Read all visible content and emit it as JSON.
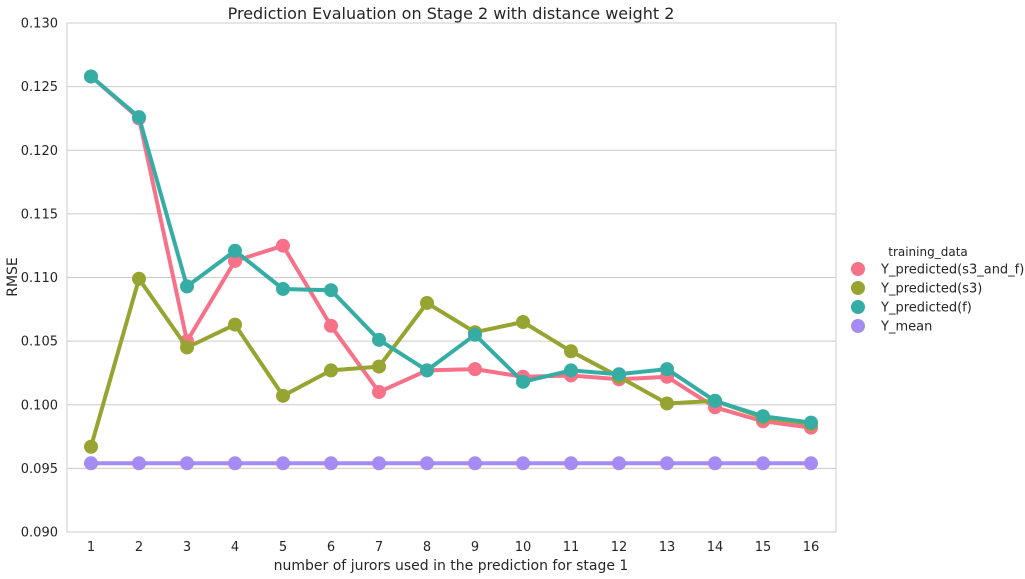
{
  "chart_data": {
    "type": "line",
    "title": "Prediction Evaluation on Stage 2 with distance weight 2",
    "xlabel": "number of jurors used in the prediction for stage 1",
    "ylabel": "RMSE",
    "categories": [
      1,
      2,
      3,
      4,
      5,
      6,
      7,
      8,
      9,
      10,
      11,
      12,
      13,
      14,
      15,
      16
    ],
    "ylim": [
      0.09,
      0.13
    ],
    "yticks": [
      "0.090",
      "0.095",
      "0.100",
      "0.105",
      "0.110",
      "0.115",
      "0.120",
      "0.125",
      "0.130"
    ],
    "grid": "horizontal",
    "legend": {
      "title": "training_data",
      "placement": "right"
    },
    "series": [
      {
        "name": "Y_predicted(s3_and_f)",
        "color": "#f77189",
        "values": [
          0.1258,
          0.1225,
          0.105,
          0.1113,
          0.1125,
          0.1062,
          0.101,
          0.1027,
          0.1028,
          0.1022,
          0.1023,
          0.102,
          0.1022,
          0.0998,
          0.0987,
          0.0982
        ]
      },
      {
        "name": "Y_predicted(s3)",
        "color": "#97a431",
        "values": [
          0.0967,
          0.1099,
          0.1045,
          0.1063,
          0.1007,
          0.1027,
          0.103,
          0.108,
          0.1057,
          0.1065,
          0.1042,
          0.1022,
          0.1001,
          0.1003,
          0.099,
          0.0985
        ]
      },
      {
        "name": "Y_predicted(f)",
        "color": "#36ada4",
        "values": [
          0.1258,
          0.1226,
          0.1093,
          0.1121,
          0.1091,
          0.109,
          0.1051,
          0.1027,
          0.1055,
          0.1018,
          0.1027,
          0.1024,
          0.1028,
          0.1003,
          0.0991,
          0.0986
        ]
      },
      {
        "name": "Y_mean",
        "color": "#a48cf4",
        "values": [
          0.0954,
          0.0954,
          0.0954,
          0.0954,
          0.0954,
          0.0954,
          0.0954,
          0.0954,
          0.0954,
          0.0954,
          0.0954,
          0.0954,
          0.0954,
          0.0954,
          0.0954,
          0.0954
        ]
      }
    ]
  }
}
